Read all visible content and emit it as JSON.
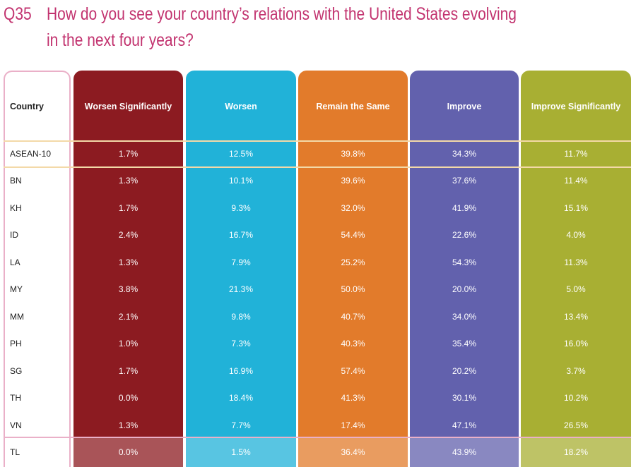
{
  "header": {
    "number": "Q35",
    "question_lines": [
      "How do you see your country’s relations with the United States evolving",
      "in the next four years?"
    ]
  },
  "table": {
    "columns": [
      "Country",
      "Worsen Significantly",
      "Worsen",
      "Remain the Same",
      "Improve",
      "Improve Significantly"
    ],
    "rows": [
      [
        "ASEAN-10",
        "1.7%",
        "12.5%",
        "39.8%",
        "34.3%",
        "11.7%"
      ],
      [
        "BN",
        "1.3%",
        "10.1%",
        "39.6%",
        "37.6%",
        "11.4%"
      ],
      [
        "KH",
        "1.7%",
        "9.3%",
        "32.0%",
        "41.9%",
        "15.1%"
      ],
      [
        "ID",
        "2.4%",
        "16.7%",
        "54.4%",
        "22.6%",
        "4.0%"
      ],
      [
        "LA",
        "1.3%",
        "7.9%",
        "25.2%",
        "54.3%",
        "11.3%"
      ],
      [
        "MY",
        "3.8%",
        "21.3%",
        "50.0%",
        "20.0%",
        "5.0%"
      ],
      [
        "MM",
        "2.1%",
        "9.8%",
        "40.7%",
        "34.0%",
        "13.4%"
      ],
      [
        "PH",
        "1.0%",
        "7.3%",
        "40.3%",
        "35.4%",
        "16.0%"
      ],
      [
        "SG",
        "1.7%",
        "16.9%",
        "57.4%",
        "20.2%",
        "3.7%"
      ],
      [
        "TH",
        "0.0%",
        "18.4%",
        "41.3%",
        "30.1%",
        "10.2%"
      ],
      [
        "VN",
        "1.3%",
        "7.7%",
        "17.4%",
        "47.1%",
        "26.5%"
      ],
      [
        "TL",
        "0.0%",
        "1.5%",
        "36.4%",
        "43.9%",
        "18.2%"
      ]
    ]
  }
}
